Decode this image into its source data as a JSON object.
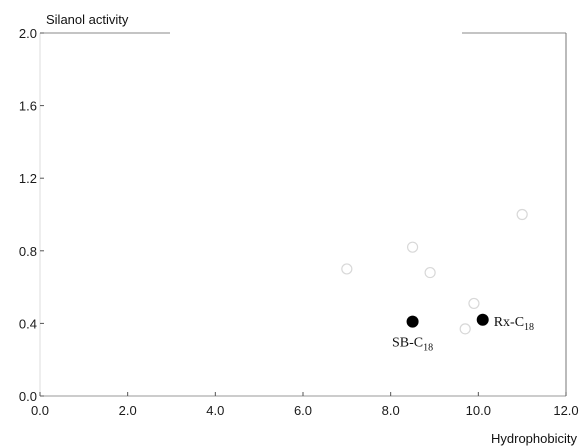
{
  "chart_data": {
    "type": "scatter",
    "title": "",
    "xlabel": "Hydrophobicity",
    "ylabel": "Silanol activity",
    "xlim": [
      0,
      12
    ],
    "ylim": [
      0,
      2
    ],
    "x_ticks": [
      "0.0",
      "2.0",
      "4.0",
      "6.0",
      "8.0",
      "10.0",
      "12.0"
    ],
    "y_ticks": [
      "0.0",
      "0.4",
      "0.8",
      "1.2",
      "1.6",
      "2.0"
    ],
    "grid": false,
    "series": [
      {
        "marker": "open-circle",
        "color": "#d8d8d8",
        "points": [
          {
            "x": 7.0,
            "y": 0.7
          },
          {
            "x": 8.5,
            "y": 0.82
          },
          {
            "x": 8.9,
            "y": 0.68
          },
          {
            "x": 9.7,
            "y": 0.37
          },
          {
            "x": 9.9,
            "y": 0.51
          },
          {
            "x": 11.0,
            "y": 1.0
          }
        ]
      },
      {
        "marker": "filled-circle",
        "color": "#000000",
        "points": [
          {
            "x": 8.5,
            "y": 0.41,
            "label": "SB-C18",
            "label_base": "SB-C",
            "label_sub": "18"
          },
          {
            "x": 10.1,
            "y": 0.42,
            "label": "Rx-C18",
            "label_base": "Rx-C",
            "label_sub": "18"
          }
        ]
      }
    ]
  }
}
